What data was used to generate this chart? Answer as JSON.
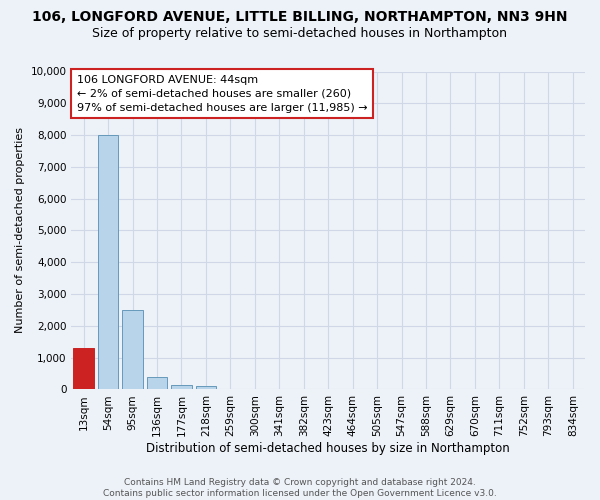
{
  "title": "106, LONGFORD AVENUE, LITTLE BILLING, NORTHAMPTON, NN3 9HN",
  "subtitle": "Size of property relative to semi-detached houses in Northampton",
  "xlabel": "Distribution of semi-detached houses by size in Northampton",
  "ylabel": "Number of semi-detached properties",
  "footer_line1": "Contains HM Land Registry data © Crown copyright and database right 2024.",
  "footer_line2": "Contains public sector information licensed under the Open Government Licence v3.0.",
  "categories": [
    "13sqm",
    "54sqm",
    "95sqm",
    "136sqm",
    "177sqm",
    "218sqm",
    "259sqm",
    "300sqm",
    "341sqm",
    "382sqm",
    "423sqm",
    "464sqm",
    "505sqm",
    "547sqm",
    "588sqm",
    "629sqm",
    "670sqm",
    "711sqm",
    "752sqm",
    "793sqm",
    "834sqm"
  ],
  "values": [
    1300,
    8000,
    2500,
    380,
    150,
    100,
    0,
    0,
    0,
    0,
    0,
    0,
    0,
    0,
    0,
    0,
    0,
    0,
    0,
    0,
    0
  ],
  "highlight_index": 0,
  "highlight_color": "#cc2222",
  "normal_bar_color": "#b8d4ea",
  "normal_bar_edge": "#6699bb",
  "highlight_bar_edge": "#cc2222",
  "ylim": [
    0,
    10000
  ],
  "yticks": [
    0,
    1000,
    2000,
    3000,
    4000,
    5000,
    6000,
    7000,
    8000,
    9000,
    10000
  ],
  "annotation_line1": "106 LONGFORD AVENUE: 44sqm",
  "annotation_line2": "← 2% of semi-detached houses are smaller (260)",
  "annotation_line3": "97% of semi-detached houses are larger (11,985) →",
  "annotation_box_facecolor": "#ffffff",
  "annotation_box_edgecolor": "#cc2222",
  "bg_color": "#edf2f8",
  "grid_color": "#d0d8e8",
  "title_fontsize": 10,
  "subtitle_fontsize": 9,
  "xlabel_fontsize": 8.5,
  "ylabel_fontsize": 8,
  "tick_fontsize": 7.5,
  "annotation_fontsize": 8,
  "footer_fontsize": 6.5
}
